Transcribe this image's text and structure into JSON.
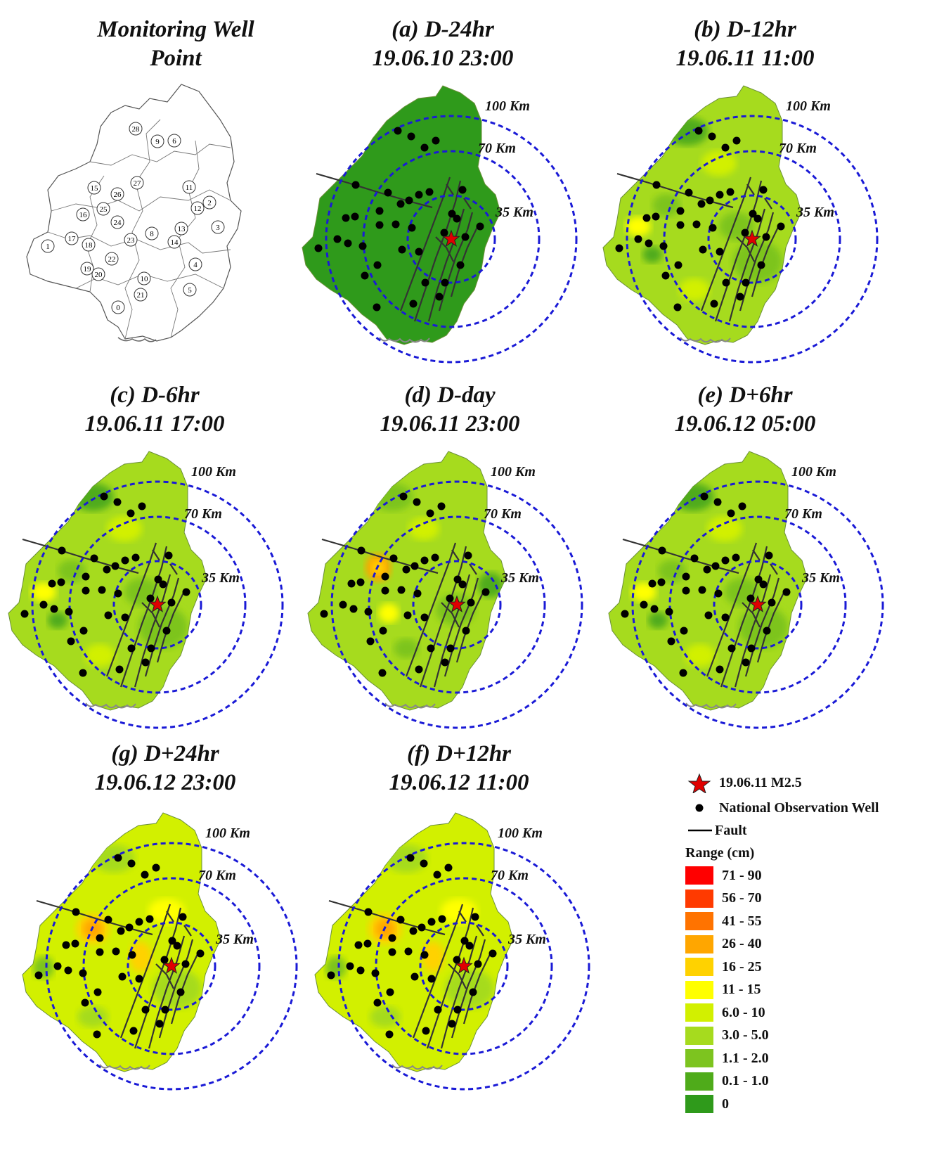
{
  "panels": [
    {
      "id": "well",
      "line1": "Monitoring Well",
      "line2": "Point"
    },
    {
      "id": "a",
      "line1": "(a) D-24hr",
      "line2": "19.06.10 23:00"
    },
    {
      "id": "b",
      "line1": "(b) D-12hr",
      "line2": "19.06.11 11:00"
    },
    {
      "id": "c",
      "line1": "(c) D-6hr",
      "line2": "19.06.11 17:00"
    },
    {
      "id": "d",
      "line1": "(d) D-day",
      "line2": "19.06.11 23:00"
    },
    {
      "id": "e",
      "line1": "(e) D+6hr",
      "line2": "19.06.12 05:00"
    },
    {
      "id": "g",
      "line1": "(g) D+24hr",
      "line2": "19.06.12 23:00"
    },
    {
      "id": "f",
      "line1": "(f) D+12hr",
      "line2": "19.06.12 11:00"
    }
  ],
  "ring_labels": [
    "100 Km",
    "70 Km",
    "35 Km"
  ],
  "well_numbers": [
    "0",
    "1",
    "2",
    "3",
    "4",
    "5",
    "6",
    "8",
    "9",
    "10",
    "11",
    "12",
    "13",
    "14",
    "15",
    "16",
    "17",
    "18",
    "19",
    "20",
    "21",
    "22",
    "23",
    "24",
    "25",
    "26",
    "27",
    "28"
  ],
  "legend": {
    "star_label": "19.06.11 M2.5",
    "well_label": "National Observation Well",
    "fault_label": "Fault",
    "range_title": "Range (cm)",
    "ranges": [
      {
        "label": "71 - 90",
        "color": "#ff0000"
      },
      {
        "label": "56 - 70",
        "color": "#ff3a00"
      },
      {
        "label": "41 - 55",
        "color": "#ff7300"
      },
      {
        "label": "26 - 40",
        "color": "#ffa600"
      },
      {
        "label": "16 - 25",
        "color": "#ffd200"
      },
      {
        "label": "11 - 15",
        "color": "#ffff00"
      },
      {
        "label": "6.0 - 10",
        "color": "#d2f000"
      },
      {
        "label": "3.0 - 5.0",
        "color": "#a6db1e"
      },
      {
        "label": "1.1 - 2.0",
        "color": "#7dc41f"
      },
      {
        "label": "0.1 - 1.0",
        "color": "#4fab1a"
      },
      {
        "label": "0",
        "color": "#2f9a1b"
      }
    ]
  },
  "colors": {
    "ring": "#1a1ad6",
    "fault": "#333333",
    "well": "#000000",
    "star": "#e00000",
    "base_green": "#3f9e2e",
    "base_yellowgreen": "#a3d635"
  }
}
